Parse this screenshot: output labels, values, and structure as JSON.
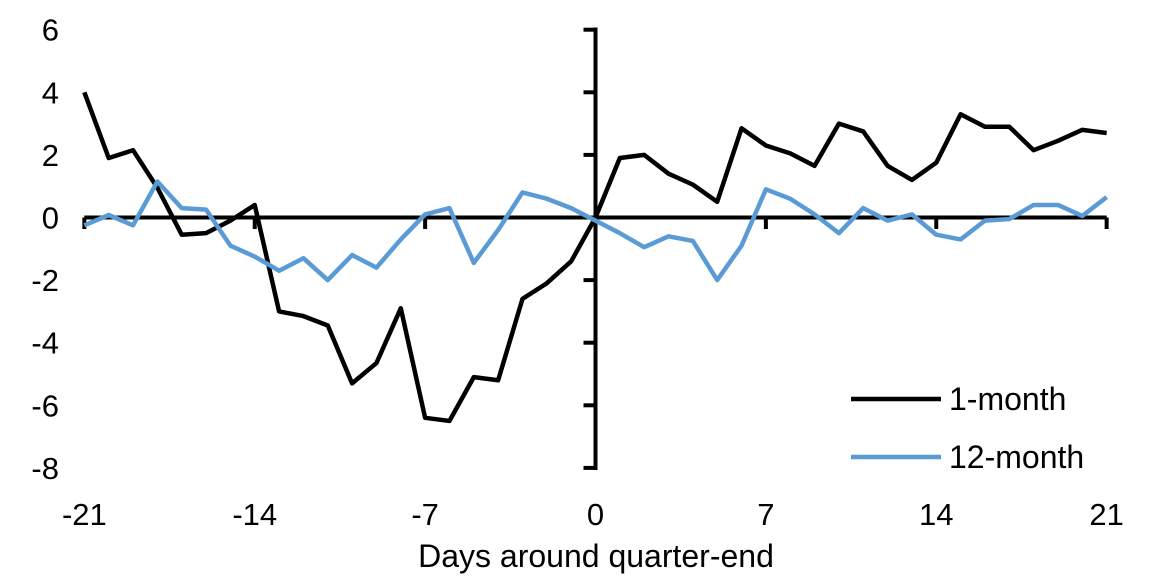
{
  "chart_data": {
    "type": "line",
    "title": "",
    "xlabel": "Days around quarter-end",
    "ylabel": "",
    "grid": false,
    "legend_position": "inside-bottom-right",
    "xlim": [
      -21,
      21
    ],
    "ylim": [
      -8,
      6
    ],
    "x_ticks": [
      -21,
      -14,
      -7,
      0,
      7,
      14,
      21
    ],
    "y_ticks": [
      6,
      4,
      2,
      0,
      -2,
      -4,
      -6,
      -8
    ],
    "x": [
      -21,
      -20,
      -19,
      -18,
      -17,
      -16,
      -15,
      -14,
      -13,
      -12,
      -11,
      -10,
      -9,
      -8,
      -7,
      -6,
      -5,
      -4,
      -3,
      -2,
      -1,
      0,
      1,
      2,
      3,
      4,
      5,
      6,
      7,
      8,
      9,
      10,
      11,
      12,
      13,
      14,
      15,
      16,
      17,
      18,
      19,
      20,
      21
    ],
    "series": [
      {
        "name": "1-month",
        "color": "#000000",
        "values": [
          4.0,
          1.9,
          2.15,
          0.95,
          -0.55,
          -0.5,
          -0.1,
          0.4,
          -3.0,
          -3.15,
          -3.45,
          -5.3,
          -4.65,
          -2.9,
          -6.4,
          -6.5,
          -5.1,
          -5.2,
          -2.6,
          -2.1,
          -1.4,
          0.0,
          1.9,
          2.0,
          1.4,
          1.05,
          0.5,
          2.85,
          2.3,
          2.05,
          1.65,
          3.0,
          2.75,
          1.65,
          1.2,
          1.75,
          3.3,
          2.9,
          2.9,
          2.15,
          2.45,
          2.8,
          2.7
        ]
      },
      {
        "name": "12-month",
        "color": "#5B9BD5",
        "values": [
          -0.25,
          0.08,
          -0.25,
          1.15,
          0.3,
          0.25,
          -0.9,
          -1.25,
          -1.7,
          -1.3,
          -2.0,
          -1.2,
          -1.6,
          -0.7,
          0.1,
          0.3,
          -1.45,
          -0.4,
          0.8,
          0.6,
          0.3,
          -0.1,
          -0.5,
          -0.95,
          -0.6,
          -0.75,
          -2.0,
          -0.9,
          0.9,
          0.6,
          0.1,
          -0.5,
          0.3,
          -0.1,
          0.1,
          -0.55,
          -0.7,
          -0.1,
          -0.05,
          0.4,
          0.4,
          0.05,
          0.65
        ]
      }
    ]
  }
}
